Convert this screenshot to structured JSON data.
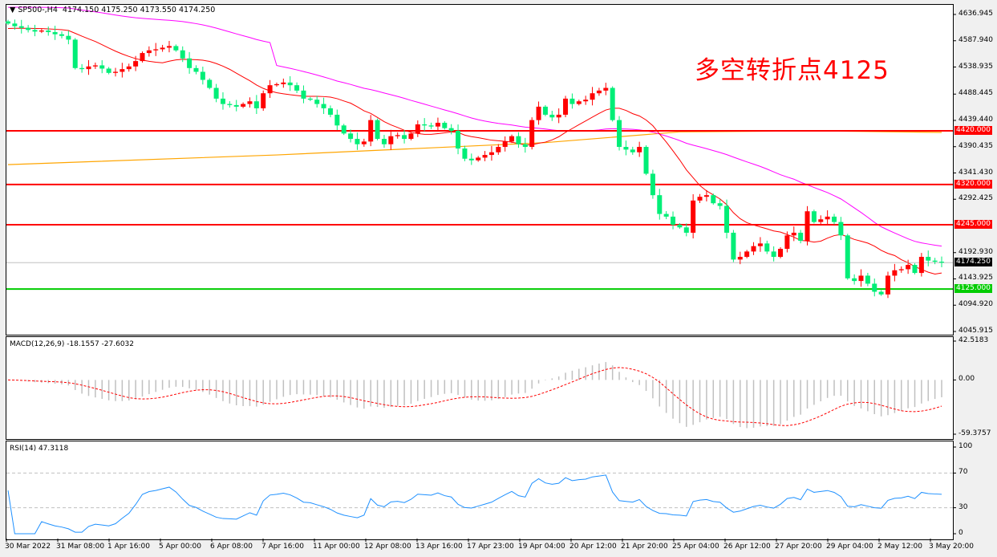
{
  "header": {
    "symbol": "SP500-,H4",
    "ohlc": "4174.150 4175.250 4173.550 4174.250"
  },
  "annotation": "多空转折点4125",
  "colors": {
    "up": "#ff0000",
    "down": "#00ee77",
    "ma_fast": "#ff0000",
    "ma_slow": "#ff00ff",
    "ma_long": "#ffa500",
    "resistance": "#ff0000",
    "support": "#00cc00",
    "macd_hist": "#c0c0c0",
    "macd_signal": "#ff0000",
    "rsi": "#1e90ff"
  },
  "chart_data": {
    "type": "candlestick",
    "title": "SP500-,H4",
    "ylim": [
      4045.915,
      4636.945
    ],
    "price_ticks": [
      "4636.945",
      "4587.940",
      "4538.935",
      "4488.445",
      "4439.440",
      "4390.435",
      "4341.430",
      "4292.425",
      "4192.930",
      "4143.925",
      "4094.920",
      "4045.915"
    ],
    "closes": [
      4620,
      4615,
      4612,
      4608,
      4605,
      4607,
      4604,
      4600,
      4597,
      4590,
      4537,
      4535,
      4540,
      4542,
      4536,
      4528,
      4530,
      4535,
      4540,
      4550,
      4565,
      4570,
      4572,
      4575,
      4578,
      4570,
      4555,
      4537,
      4530,
      4515,
      4500,
      4480,
      4470,
      4468,
      4465,
      4470,
      4475,
      4462,
      4490,
      4505,
      4507,
      4510,
      4505,
      4495,
      4480,
      4478,
      4470,
      4462,
      4450,
      4430,
      4415,
      4405,
      4395,
      4400,
      4440,
      4405,
      4395,
      4410,
      4412,
      4405,
      4415,
      4432,
      4430,
      4428,
      4435,
      4425,
      4420,
      4387,
      4368,
      4365,
      4370,
      4375,
      4380,
      4390,
      4400,
      4410,
      4395,
      4390,
      4440,
      4465,
      4450,
      4445,
      4450,
      4480,
      4470,
      4475,
      4478,
      4490,
      4495,
      4500,
      4440,
      4390,
      4385,
      4380,
      4390,
      4340,
      4300,
      4265,
      4260,
      4245,
      4240,
      4230,
      4290,
      4297,
      4300,
      4285,
      4280,
      4230,
      4180,
      4185,
      4195,
      4205,
      4210,
      4195,
      4185,
      4200,
      4225,
      4230,
      4215,
      4270,
      4250,
      4255,
      4260,
      4250,
      4225,
      4145,
      4140,
      4150,
      4135,
      4120,
      4115,
      4150,
      4160,
      4162,
      4170,
      4155,
      4185,
      4178,
      4176,
      4174.25
    ],
    "ma_long_points": [
      [
        0,
        4357
      ],
      [
        40,
        4375
      ],
      [
        80,
        4398
      ],
      [
        100,
        4418
      ],
      [
        120,
        4420
      ],
      [
        139,
        4417
      ]
    ],
    "levels": [
      {
        "value": 4420,
        "label": "4420.000",
        "kind": "resistance"
      },
      {
        "value": 4320,
        "label": "4320.000",
        "kind": "resistance"
      },
      {
        "value": 4245,
        "label": "4245.000",
        "kind": "resistance"
      },
      {
        "value": 4125,
        "label": "4125.000",
        "kind": "support"
      }
    ],
    "current_price": {
      "value": 4174.25,
      "label": "4174.250"
    },
    "x_ticks": [
      "30 Mar 2022",
      "31 Mar 08:00",
      "1 Apr 16:00",
      "5 Apr 00:00",
      "6 Apr 08:00",
      "7 Apr 16:00",
      "11 Apr 00:00",
      "12 Apr 08:00",
      "13 Apr 16:00",
      "17 Apr 23:00",
      "19 Apr 04:00",
      "20 Apr 12:00",
      "21 Apr 20:00",
      "25 Apr 04:00",
      "26 Apr 12:00",
      "27 Apr 20:00",
      "29 Apr 04:00",
      "2 May 12:00",
      "3 May 20:00"
    ],
    "macd": {
      "label": "MACD(12,26,9) -18.1557 -27.6032",
      "ylim": [
        -59.3757,
        42.5183
      ],
      "ticks": [
        "42.5183",
        "0.00",
        "-59.3757"
      ]
    },
    "rsi": {
      "label": "RSI(14) 47.3118",
      "ylim": [
        0,
        100
      ],
      "ticks": [
        "100",
        "70",
        "30",
        "0"
      ],
      "levels": [
        70,
        30
      ]
    }
  }
}
